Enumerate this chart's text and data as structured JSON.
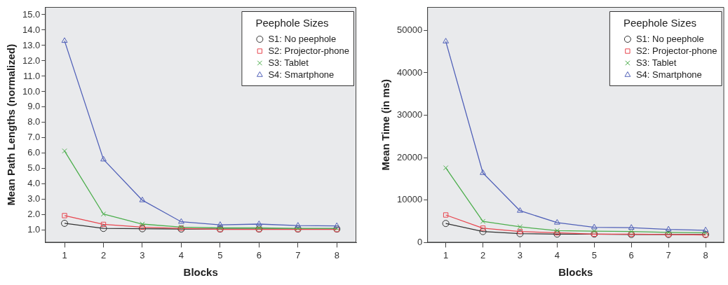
{
  "chart_data": [
    {
      "type": "line",
      "xlabel": "Blocks",
      "ylabel": "Mean Path Lengths (normalized)",
      "legend_title": "Peephole Sizes",
      "legend": "top right",
      "grid": false,
      "categories": [
        "1",
        "2",
        "3",
        "4",
        "5",
        "6",
        "7",
        "8"
      ],
      "ylim": [
        0.2,
        15.5
      ],
      "yticks": [
        {
          "value": 1,
          "label": "1.0"
        },
        {
          "value": 2,
          "label": "2.0"
        },
        {
          "value": 3,
          "label": "3.0"
        },
        {
          "value": 4,
          "label": "4.0"
        },
        {
          "value": 5,
          "label": "5.0"
        },
        {
          "value": 6,
          "label": "6.0"
        },
        {
          "value": 7,
          "label": "7.0"
        },
        {
          "value": 8,
          "label": "8.0"
        },
        {
          "value": 9,
          "label": "9.0"
        },
        {
          "value": 10,
          "label": "10.0"
        },
        {
          "value": 11,
          "label": "11.0"
        },
        {
          "value": 12,
          "label": "12.0"
        },
        {
          "value": 13,
          "label": "13.0"
        },
        {
          "value": 14,
          "label": "14.0"
        },
        {
          "value": 15,
          "label": "15.0"
        }
      ],
      "series": [
        {
          "name": "S1: No peephole",
          "color": "#333333",
          "marker": "circle",
          "values": [
            1.45,
            1.12,
            1.1,
            1.08,
            1.08,
            1.08,
            1.08,
            1.08
          ]
        },
        {
          "name": "S2: Projector-phone",
          "color": "#e8464f",
          "marker": "square",
          "values": [
            1.95,
            1.38,
            1.2,
            1.12,
            1.05,
            1.05,
            1.05,
            1.05
          ]
        },
        {
          "name": "S3: Tablet",
          "color": "#4cae4c",
          "marker": "cross",
          "values": [
            6.15,
            2.05,
            1.4,
            1.2,
            1.15,
            1.15,
            1.12,
            1.12
          ]
        },
        {
          "name": "S4: Smartphone",
          "color": "#5060b8",
          "marker": "triangle",
          "values": [
            13.3,
            5.6,
            2.95,
            1.55,
            1.35,
            1.4,
            1.3,
            1.28
          ]
        }
      ]
    },
    {
      "type": "line",
      "xlabel": "Blocks",
      "ylabel": "Mean Time (in ms)",
      "legend_title": "Peephole Sizes",
      "legend": "top right",
      "grid": false,
      "categories": [
        "1",
        "2",
        "3",
        "4",
        "5",
        "6",
        "7",
        "8"
      ],
      "ylim": [
        0,
        55500
      ],
      "yticks": [
        0,
        10000,
        20000,
        30000,
        40000,
        50000
      ],
      "series": [
        {
          "name": "S1: No peephole",
          "color": "#333333",
          "marker": "circle",
          "values": [
            4500,
            2600,
            2100,
            2000,
            2000,
            1900,
            1900,
            1900
          ]
        },
        {
          "name": "S2: Projector-phone",
          "color": "#e8464f",
          "marker": "square",
          "values": [
            6500,
            3400,
            2600,
            2300,
            2000,
            2000,
            1900,
            1800
          ]
        },
        {
          "name": "S3: Tablet",
          "color": "#4cae4c",
          "marker": "cross",
          "values": [
            17600,
            5000,
            3700,
            2800,
            2700,
            2600,
            2400,
            2300
          ]
        },
        {
          "name": "S4: Smartphone",
          "color": "#5060b8",
          "marker": "triangle",
          "values": [
            47400,
            16400,
            7500,
            4700,
            3600,
            3500,
            3100,
            2900
          ]
        }
      ]
    }
  ]
}
